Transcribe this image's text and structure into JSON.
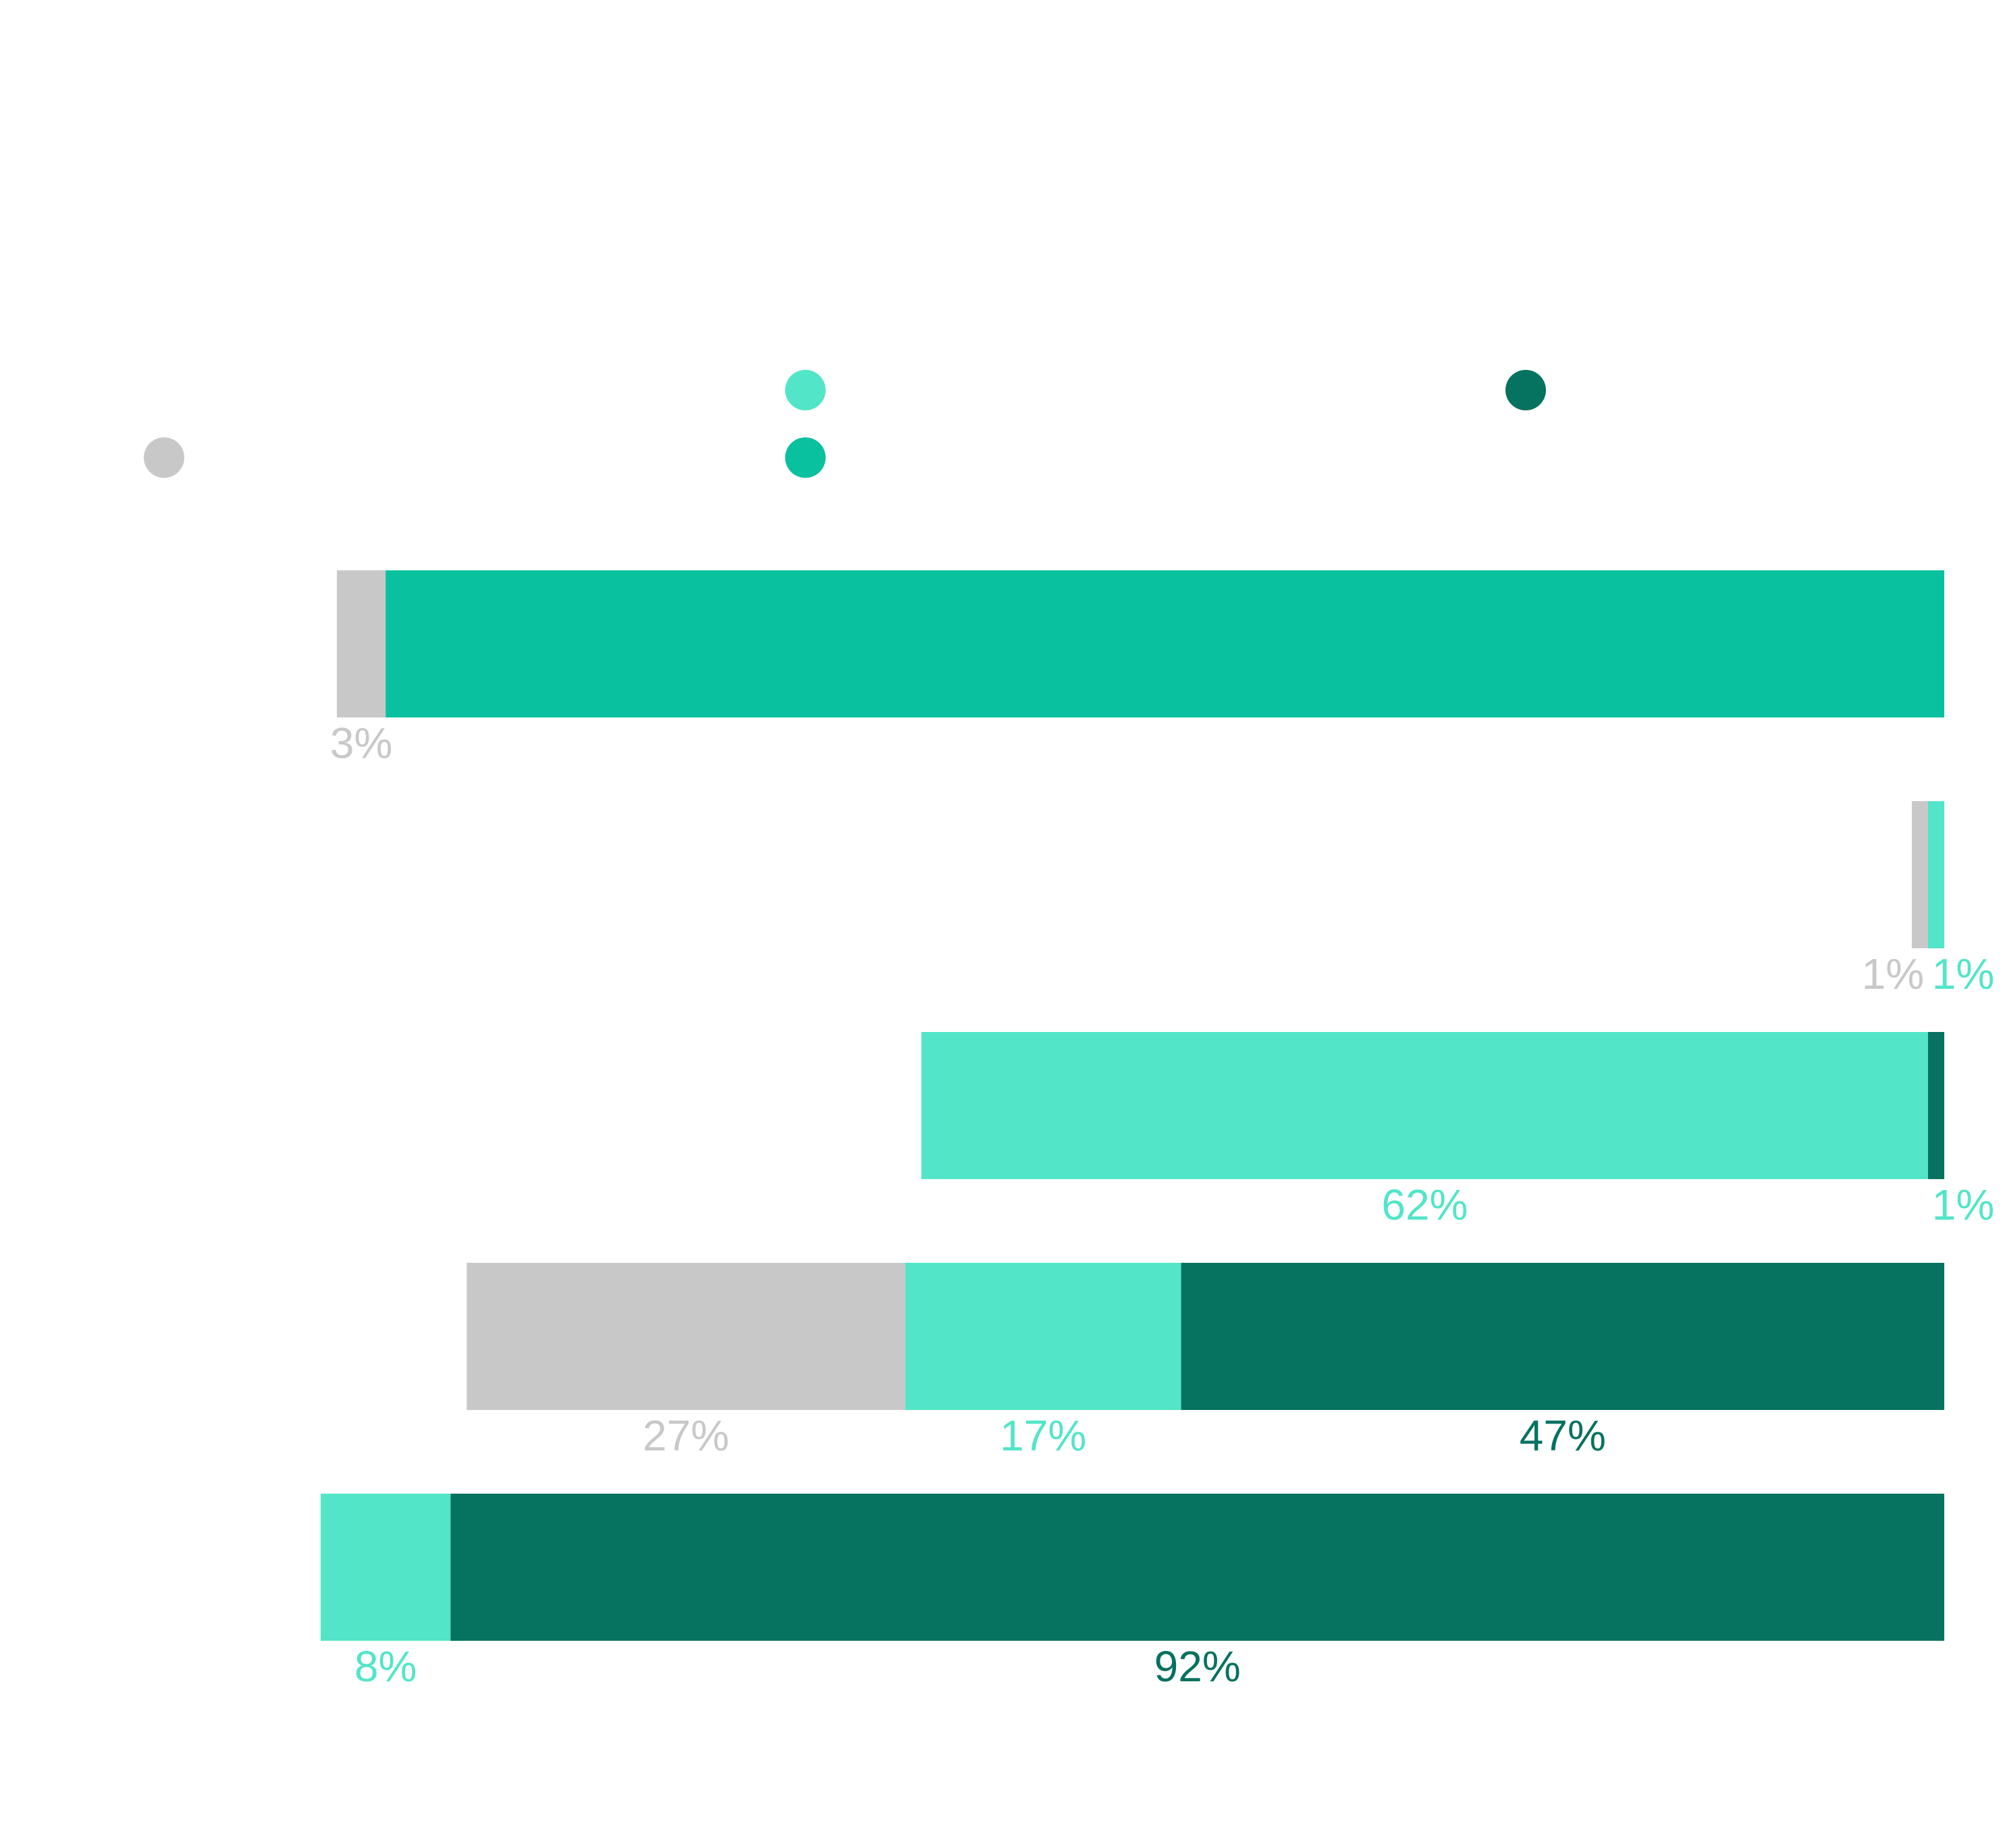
{
  "chart_data": {
    "type": "bar",
    "orientation": "horizontal",
    "stacked": true,
    "title": "",
    "xlabel": "",
    "ylabel": "",
    "xlim": [
      0,
      100
    ],
    "grid": false,
    "legend_position": "top",
    "legend": [
      {
        "series": 0,
        "name": "",
        "color": "#c8c8c8"
      },
      {
        "series": 1,
        "name": "",
        "color": "#52e5c8"
      },
      {
        "series": 2,
        "name": "",
        "color": "#0ac19f"
      },
      {
        "series": 3,
        "name": "",
        "color": "#067260"
      }
    ],
    "rows": [
      {
        "segments": [
          {
            "series": 0,
            "value": 3,
            "label": "3%"
          },
          {
            "series": 2,
            "value": 96,
            "label": ""
          }
        ]
      },
      {
        "segments": [
          {
            "series": 0,
            "value": 1,
            "label": "1%"
          },
          {
            "series": 1,
            "value": 1,
            "label": "1%"
          }
        ]
      },
      {
        "segments": [
          {
            "series": 1,
            "value": 62,
            "label": "62%"
          },
          {
            "series": 3,
            "value": 1,
            "label": "1%"
          }
        ]
      },
      {
        "segments": [
          {
            "series": 0,
            "value": 27,
            "label": "27%"
          },
          {
            "series": 1,
            "value": 17,
            "label": "17%"
          },
          {
            "series": 3,
            "value": 47,
            "label": "47%"
          }
        ]
      },
      {
        "segments": [
          {
            "series": 1,
            "value": 8,
            "label": "8%"
          },
          {
            "series": 3,
            "value": 92,
            "label": "92%"
          }
        ]
      }
    ]
  }
}
